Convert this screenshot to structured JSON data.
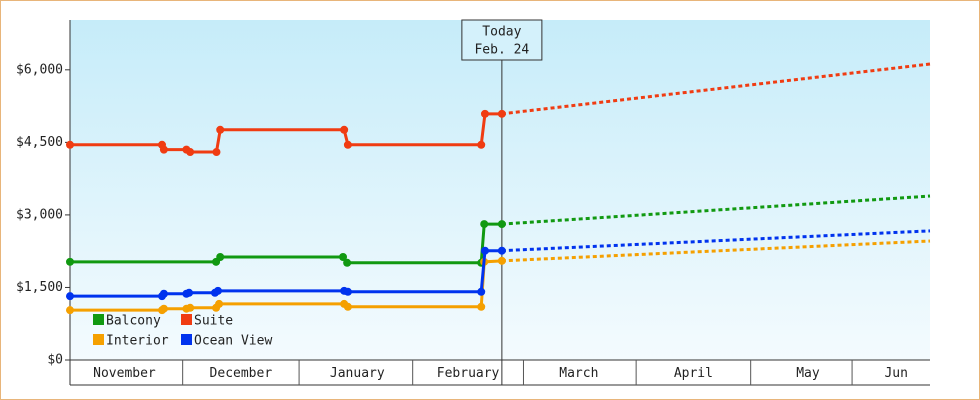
{
  "chart_data": {
    "type": "line",
    "ylim": [
      0,
      7030
    ],
    "yticks": [
      {
        "value": 0,
        "label": "$0"
      },
      {
        "value": 1500,
        "label": "$1,500"
      },
      {
        "value": 3000,
        "label": "$3,000"
      },
      {
        "value": 4500,
        "label": "$4,500"
      },
      {
        "value": 6000,
        "label": "$6,000"
      }
    ],
    "xlim": [
      0,
      229
    ],
    "xticks": [
      {
        "value": 14.5,
        "label": "November"
      },
      {
        "value": 45.5,
        "label": "December"
      },
      {
        "value": 76.5,
        "label": "January"
      },
      {
        "value": 106,
        "label": "February"
      },
      {
        "value": 135.5,
        "label": "March"
      },
      {
        "value": 166,
        "label": "April"
      },
      {
        "value": 196.5,
        "label": "May"
      },
      {
        "value": 220,
        "label": "Jun"
      }
    ],
    "today_x": 115,
    "today_label": [
      "Today",
      "Feb. 24"
    ],
    "series": [
      {
        "name": "Balcony",
        "color": "#119911",
        "x": [
          0,
          38.9,
          40,
          72.7,
          73.8,
          109.5,
          110.3,
          115,
          229
        ],
        "values": [
          2030,
          2030,
          2130,
          2130,
          2010,
          2010,
          2810,
          2810,
          3390
        ]
      },
      {
        "name": "Suite",
        "color": "#f03c12",
        "x": [
          0,
          24.5,
          25,
          31,
          32,
          39,
          40,
          73,
          74,
          109.5,
          110.5,
          115,
          229
        ],
        "values": [
          4450,
          4450,
          4350,
          4350,
          4300,
          4300,
          4760,
          4760,
          4450,
          4450,
          5090,
          5090,
          6120
        ]
      },
      {
        "name": "Interior",
        "color": "#f5a000",
        "x": [
          0,
          24.5,
          25,
          31,
          32,
          38.9,
          39.7,
          73,
          74,
          109.5,
          110.3,
          115,
          229
        ],
        "values": [
          1030,
          1030,
          1060,
          1060,
          1080,
          1080,
          1160,
          1160,
          1100,
          1100,
          2030,
          2050,
          2460
        ]
      },
      {
        "name": "Ocean View",
        "color": "#0033ee",
        "x": [
          0,
          24.5,
          25,
          31,
          31.7,
          38.6,
          39.4,
          73,
          74,
          109.5,
          110.5,
          115,
          229
        ],
        "values": [
          1320,
          1320,
          1370,
          1370,
          1390,
          1390,
          1430,
          1430,
          1410,
          1410,
          2260,
          2260,
          2670
        ]
      }
    ]
  }
}
